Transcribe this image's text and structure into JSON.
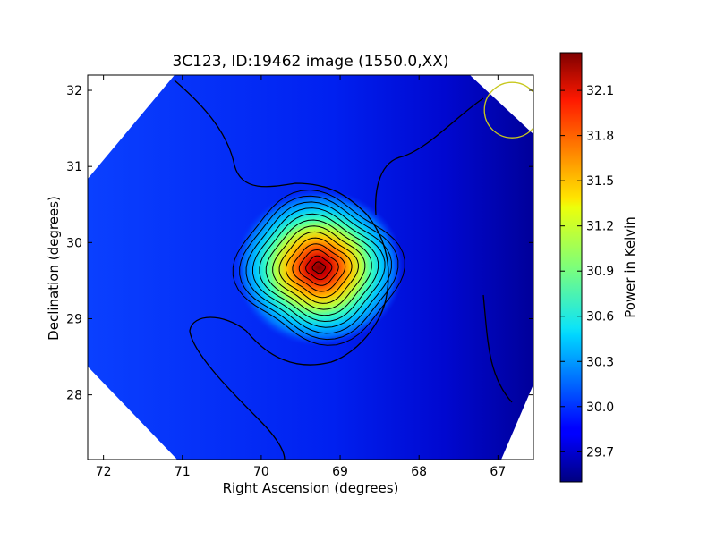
{
  "chart_data": {
    "type": "heatmap",
    "title": "3C123, ID:19462 image (1550.0,XX)",
    "xlabel": "Right Ascension (degrees)",
    "ylabel": "Declination (degrees)",
    "x_ticks": [
      "72",
      "71",
      "70",
      "69",
      "68",
      "67"
    ],
    "y_ticks": [
      "28",
      "29",
      "30",
      "31",
      "32"
    ],
    "xlim": [
      72.2,
      66.55
    ],
    "ylim": [
      27.15,
      32.2
    ],
    "x_reversed": true,
    "colormap": "jet",
    "colorbar": {
      "label": "Power in Kelvin",
      "min": 29.5,
      "max": 32.35,
      "ticks": [
        "32.1",
        "31.8",
        "31.5",
        "31.2",
        "30.9",
        "30.6",
        "30.3",
        "30.0",
        "29.7"
      ]
    },
    "source": {
      "ra": 69.27,
      "dec": 29.67,
      "peak": 32.3
    },
    "background_level": 29.9,
    "contour_levels": 13,
    "beam_marker": {
      "ra": 66.82,
      "dec": 31.74,
      "color": "#c8c81e"
    },
    "grid": false,
    "legend": "none"
  }
}
